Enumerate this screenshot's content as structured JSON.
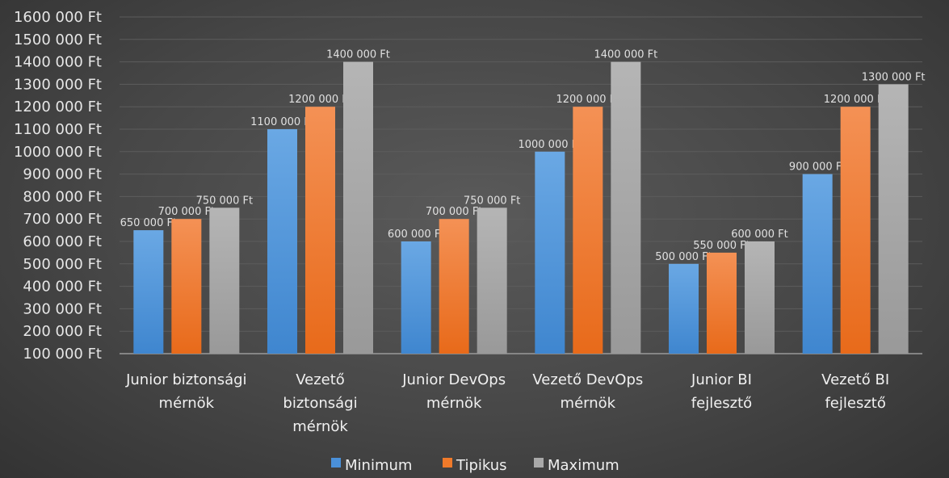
{
  "chart_data": {
    "type": "bar",
    "title": "",
    "xlabel": "",
    "ylabel": "",
    "ylim": [
      100000,
      1600000
    ],
    "ytick_step": 100000,
    "yticks": [
      "100 000 Ft",
      "200 000 Ft",
      "300 000 Ft",
      "400 000 Ft",
      "500 000 Ft",
      "600 000 Ft",
      "700 000 Ft",
      "800 000 Ft",
      "900 000 Ft",
      "1000 000 Ft",
      "1100 000 Ft",
      "1200 000 Ft",
      "1300 000 Ft",
      "1400 000 Ft",
      "1500 000 Ft",
      "1600 000 Ft"
    ],
    "categories": [
      [
        "Junior biztonsági",
        "mérnök"
      ],
      [
        "Vezető",
        "biztonsági",
        "mérnök"
      ],
      [
        "Junior DevOps",
        "mérnök"
      ],
      [
        "Vezető DevOps",
        "mérnök"
      ],
      [
        "Junior BI",
        "fejlesztő"
      ],
      [
        "Vezető BI",
        "fejlesztő"
      ]
    ],
    "series": [
      {
        "name": "Minimum",
        "color": "#4a90d9",
        "values": [
          650000,
          1100000,
          600000,
          1000000,
          500000,
          900000
        ],
        "labels": [
          "650 000 Ft",
          "1100 000 Ft",
          "600 000 Ft",
          "1000 000 Ft",
          "500 000 Ft",
          "900 000 Ft"
        ]
      },
      {
        "name": "Tipikus",
        "color": "#f07a2a",
        "values": [
          700000,
          1200000,
          700000,
          1200000,
          550000,
          1200000
        ],
        "labels": [
          "700 000 Ft",
          "1200 000 Ft",
          "700 000 Ft",
          "1200 000 Ft",
          "550 000 Ft",
          "1200 000 Ft"
        ]
      },
      {
        "name": "Maximum",
        "color": "#a9a9a9",
        "values": [
          750000,
          1400000,
          750000,
          1400000,
          600000,
          1300000
        ],
        "labels": [
          "750 000 Ft",
          "1400 000 Ft",
          "750 000 Ft",
          "1400 000 Ft",
          "600 000 Ft",
          "1300 000 Ft"
        ]
      }
    ],
    "grid": true,
    "legend": "bottom"
  }
}
